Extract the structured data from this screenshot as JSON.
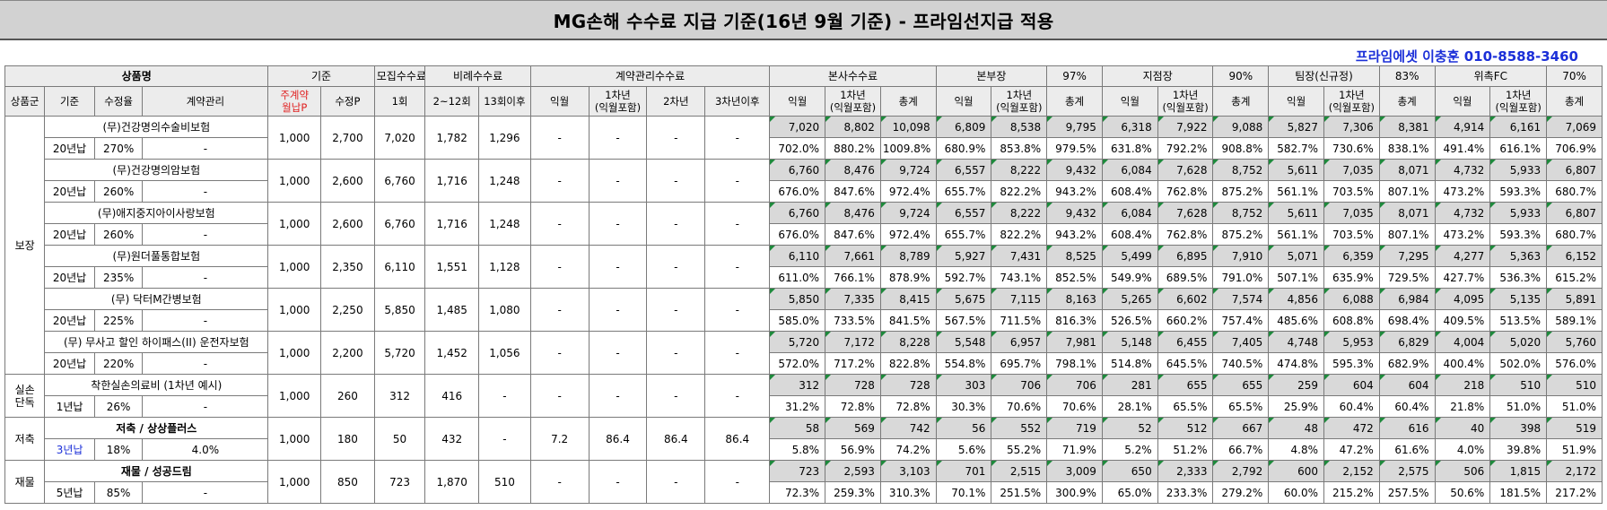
{
  "title": "MG손해 수수료 지급 기준(16년 9월 기준) - 프라임선지급 적용",
  "contact": "프라임에셋 이충훈 010-8588-3460",
  "header": {
    "product": "상품명",
    "basis": "기준",
    "recruit": "모집수수료",
    "proportional": "비례수수료",
    "contract_mgmt": "계약관리수수료",
    "hq": "본사수수료",
    "bonbu": "본부장",
    "bonbu_pct": "97%",
    "branch": "지점장",
    "branch_pct": "90%",
    "team": "팀장(신규정)",
    "team_pct": "83%",
    "fc": "위촉FC",
    "fc_pct": "70%",
    "sub": {
      "group": "상품군",
      "basis": "기준",
      "rate": "수정율",
      "mgmt": "계약관리",
      "monthly": "주계약\n월납P",
      "adjusted": "수정P",
      "first": "1회",
      "r2_12": "2~12회",
      "r13": "13회이후",
      "ikwol": "익월",
      "y1": "1차년\n(익월포함)",
      "y2": "2차년",
      "y3": "3차년이후",
      "total": "총계"
    }
  },
  "groups": [
    {
      "name": "보장",
      "rows": 12
    },
    {
      "name": "실손\n단독",
      "rows": 2
    },
    {
      "name": "저축",
      "rows": 2
    },
    {
      "name": "재물",
      "rows": 2
    }
  ],
  "products": [
    {
      "name": "(무)건강명의수술비보험",
      "basis": "20년납",
      "rate": "270%",
      "mgmt": "-",
      "monthly": "1,000",
      "adj": "2,700",
      "first": "7,020",
      "r2_12": "1,782",
      "r13": "1,296",
      "cm": [
        "-",
        "-",
        "-",
        "-"
      ],
      "amt": [
        "7,020",
        "8,802",
        "10,098",
        "6,809",
        "8,538",
        "9,795",
        "6,318",
        "7,922",
        "9,088",
        "5,827",
        "7,306",
        "8,381",
        "4,914",
        "6,161",
        "7,069"
      ],
      "pct": [
        "702.0%",
        "880.2%",
        "1009.8%",
        "680.9%",
        "853.8%",
        "979.5%",
        "631.8%",
        "792.2%",
        "908.8%",
        "582.7%",
        "730.6%",
        "838.1%",
        "491.4%",
        "616.1%",
        "706.9%"
      ]
    },
    {
      "name": "(무)건강명의암보험",
      "basis": "20년납",
      "rate": "260%",
      "mgmt": "-",
      "monthly": "1,000",
      "adj": "2,600",
      "first": "6,760",
      "r2_12": "1,716",
      "r13": "1,248",
      "cm": [
        "-",
        "-",
        "-",
        "-"
      ],
      "amt": [
        "6,760",
        "8,476",
        "9,724",
        "6,557",
        "8,222",
        "9,432",
        "6,084",
        "7,628",
        "8,752",
        "5,611",
        "7,035",
        "8,071",
        "4,732",
        "5,933",
        "6,807"
      ],
      "pct": [
        "676.0%",
        "847.6%",
        "972.4%",
        "655.7%",
        "822.2%",
        "943.2%",
        "608.4%",
        "762.8%",
        "875.2%",
        "561.1%",
        "703.5%",
        "807.1%",
        "473.2%",
        "593.3%",
        "680.7%"
      ]
    },
    {
      "name": "(무)애지중지아이사랑보험",
      "basis": "20년납",
      "rate": "260%",
      "mgmt": "-",
      "monthly": "1,000",
      "adj": "2,600",
      "first": "6,760",
      "r2_12": "1,716",
      "r13": "1,248",
      "cm": [
        "-",
        "-",
        "-",
        "-"
      ],
      "amt": [
        "6,760",
        "8,476",
        "9,724",
        "6,557",
        "8,222",
        "9,432",
        "6,084",
        "7,628",
        "8,752",
        "5,611",
        "7,035",
        "8,071",
        "4,732",
        "5,933",
        "6,807"
      ],
      "pct": [
        "676.0%",
        "847.6%",
        "972.4%",
        "655.7%",
        "822.2%",
        "943.2%",
        "608.4%",
        "762.8%",
        "875.2%",
        "561.1%",
        "703.5%",
        "807.1%",
        "473.2%",
        "593.3%",
        "680.7%"
      ]
    },
    {
      "name": "(무)원더풀통합보험",
      "basis": "20년납",
      "rate": "235%",
      "mgmt": "-",
      "monthly": "1,000",
      "adj": "2,350",
      "first": "6,110",
      "r2_12": "1,551",
      "r13": "1,128",
      "cm": [
        "-",
        "-",
        "-",
        "-"
      ],
      "amt": [
        "6,110",
        "7,661",
        "8,789",
        "5,927",
        "7,431",
        "8,525",
        "5,499",
        "6,895",
        "7,910",
        "5,071",
        "6,359",
        "7,295",
        "4,277",
        "5,363",
        "6,152"
      ],
      "pct": [
        "611.0%",
        "766.1%",
        "878.9%",
        "592.7%",
        "743.1%",
        "852.5%",
        "549.9%",
        "689.5%",
        "791.0%",
        "507.1%",
        "635.9%",
        "729.5%",
        "427.7%",
        "536.3%",
        "615.2%"
      ]
    },
    {
      "name": "(무) 닥터M간병보험",
      "basis": "20년납",
      "rate": "225%",
      "mgmt": "-",
      "monthly": "1,000",
      "adj": "2,250",
      "first": "5,850",
      "r2_12": "1,485",
      "r13": "1,080",
      "cm": [
        "-",
        "-",
        "-",
        "-"
      ],
      "amt": [
        "5,850",
        "7,335",
        "8,415",
        "5,675",
        "7,115",
        "8,163",
        "5,265",
        "6,602",
        "7,574",
        "4,856",
        "6,088",
        "6,984",
        "4,095",
        "5,135",
        "5,891"
      ],
      "pct": [
        "585.0%",
        "733.5%",
        "841.5%",
        "567.5%",
        "711.5%",
        "816.3%",
        "526.5%",
        "660.2%",
        "757.4%",
        "485.6%",
        "608.8%",
        "698.4%",
        "409.5%",
        "513.5%",
        "589.1%"
      ]
    },
    {
      "name": "(무) 무사고 할인 하이패스(II) 운전자보험",
      "basis": "20년납",
      "rate": "220%",
      "mgmt": "-",
      "monthly": "1,000",
      "adj": "2,200",
      "first": "5,720",
      "r2_12": "1,452",
      "r13": "1,056",
      "cm": [
        "-",
        "-",
        "-",
        "-"
      ],
      "amt": [
        "5,720",
        "7,172",
        "8,228",
        "5,548",
        "6,957",
        "7,981",
        "5,148",
        "6,455",
        "7,405",
        "4,748",
        "5,953",
        "6,829",
        "4,004",
        "5,020",
        "5,760"
      ],
      "pct": [
        "572.0%",
        "717.2%",
        "822.8%",
        "554.8%",
        "695.7%",
        "798.1%",
        "514.8%",
        "645.5%",
        "740.5%",
        "474.8%",
        "595.3%",
        "682.9%",
        "400.4%",
        "502.0%",
        "576.0%"
      ]
    },
    {
      "name": "착한실손의료비 (1차년 예시)",
      "basis": "1년납",
      "rate": "26%",
      "mgmt": "-",
      "monthly": "1,000",
      "adj": "260",
      "first": "312",
      "r2_12": "416",
      "r13": "-",
      "cm": [
        "-",
        "-",
        "-",
        "-"
      ],
      "amt": [
        "312",
        "728",
        "728",
        "303",
        "706",
        "706",
        "281",
        "655",
        "655",
        "259",
        "604",
        "604",
        "218",
        "510",
        "510"
      ],
      "pct": [
        "31.2%",
        "72.8%",
        "72.8%",
        "30.3%",
        "70.6%",
        "70.6%",
        "28.1%",
        "65.5%",
        "65.5%",
        "25.9%",
        "60.4%",
        "60.4%",
        "21.8%",
        "51.0%",
        "51.0%"
      ]
    },
    {
      "name": "저축 / 상상플러스",
      "basis": "3년납",
      "rate": "18%",
      "mgmt": "4.0%",
      "monthly": "1,000",
      "adj": "180",
      "first": "50",
      "r2_12": "432",
      "r13": "-",
      "cm": [
        "7.2",
        "86.4",
        "86.4",
        "86.4"
      ],
      "amt": [
        "58",
        "569",
        "742",
        "56",
        "552",
        "719",
        "52",
        "512",
        "667",
        "48",
        "472",
        "616",
        "40",
        "398",
        "519"
      ],
      "pct": [
        "5.8%",
        "56.9%",
        "74.2%",
        "5.6%",
        "55.2%",
        "71.9%",
        "5.2%",
        "51.2%",
        "66.7%",
        "4.8%",
        "47.2%",
        "61.6%",
        "4.0%",
        "39.8%",
        "51.9%"
      ]
    },
    {
      "name": "재물 / 성공드림",
      "basis": "5년납",
      "rate": "85%",
      "mgmt": "-",
      "monthly": "1,000",
      "adj": "850",
      "first": "723",
      "r2_12": "1,870",
      "r13": "510",
      "cm": [
        "-",
        "-",
        "-",
        "-"
      ],
      "amt": [
        "723",
        "2,593",
        "3,103",
        "701",
        "2,515",
        "3,009",
        "650",
        "2,333",
        "2,792",
        "600",
        "2,152",
        "2,575",
        "506",
        "1,815",
        "2,172"
      ],
      "pct": [
        "72.3%",
        "259.3%",
        "310.3%",
        "70.1%",
        "251.5%",
        "300.9%",
        "65.0%",
        "233.3%",
        "279.2%",
        "60.0%",
        "215.2%",
        "257.5%",
        "50.6%",
        "181.5%",
        "217.2%"
      ]
    }
  ],
  "colors": {
    "title_bg": "#d2d2d2",
    "header_bg": "#ececec",
    "amount_bg": "#d9d9d9",
    "contact": "#1b2fd8",
    "red": "#e02020",
    "corner_mark": "#1e8a3c"
  }
}
